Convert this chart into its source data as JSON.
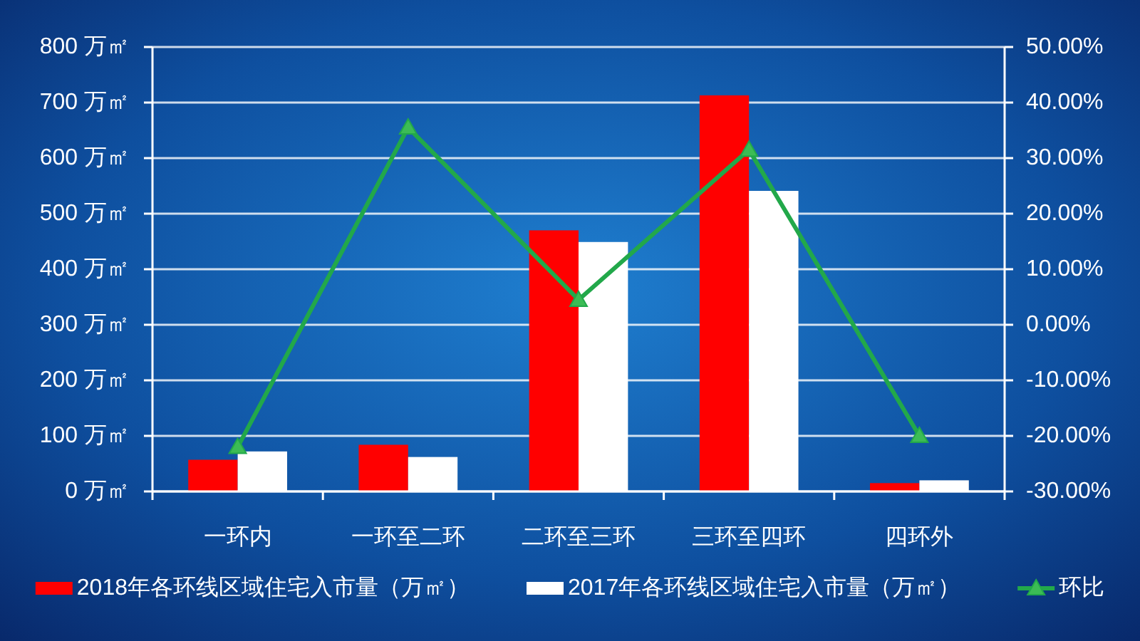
{
  "chart_data": {
    "type": "bar",
    "categories": [
      "一环内",
      "一环至二环",
      "二环至三环",
      "三环至四环",
      "四环外"
    ],
    "series": [
      {
        "name": "2018年各环线区域住宅入市量（万㎡）",
        "color": "#ff0000",
        "values": [
          57,
          84,
          470,
          713,
          15
        ]
      },
      {
        "name": "2017年各环线区域住宅入市量（万㎡）",
        "color": "#ffffff",
        "values": [
          72,
          62,
          449,
          541,
          20
        ]
      },
      {
        "name": "环比",
        "type": "line",
        "axis": "y2",
        "color": "#22a84a",
        "marker": "triangle",
        "values": [
          -22,
          35.5,
          4.5,
          31.5,
          -20
        ]
      }
    ],
    "ylim": [
      0,
      800
    ],
    "yticks": [
      {
        "value": 0,
        "label": "0 万㎡"
      },
      {
        "value": 100,
        "label": "100 万㎡"
      },
      {
        "value": 200,
        "label": "200 万㎡"
      },
      {
        "value": 300,
        "label": "300 万㎡"
      },
      {
        "value": 400,
        "label": "400 万㎡"
      },
      {
        "value": 500,
        "label": "500 万㎡"
      },
      {
        "value": 600,
        "label": "600 万㎡"
      },
      {
        "value": 700,
        "label": "700 万㎡"
      },
      {
        "value": 800,
        "label": "800 万㎡"
      }
    ],
    "y2lim": [
      -30,
      50
    ],
    "y2ticks": [
      {
        "value": -30,
        "label": "-30.00%"
      },
      {
        "value": -20,
        "label": "-20.00%"
      },
      {
        "value": -10,
        "label": "-10.00%"
      },
      {
        "value": 0,
        "label": "0.00%"
      },
      {
        "value": 10,
        "label": "10.00%"
      },
      {
        "value": 20,
        "label": "20.00%"
      },
      {
        "value": 30,
        "label": "30.00%"
      },
      {
        "value": 40,
        "label": "40.00%"
      },
      {
        "value": 50,
        "label": "50.00%"
      }
    ],
    "grid": "y",
    "legend": "bottom"
  }
}
